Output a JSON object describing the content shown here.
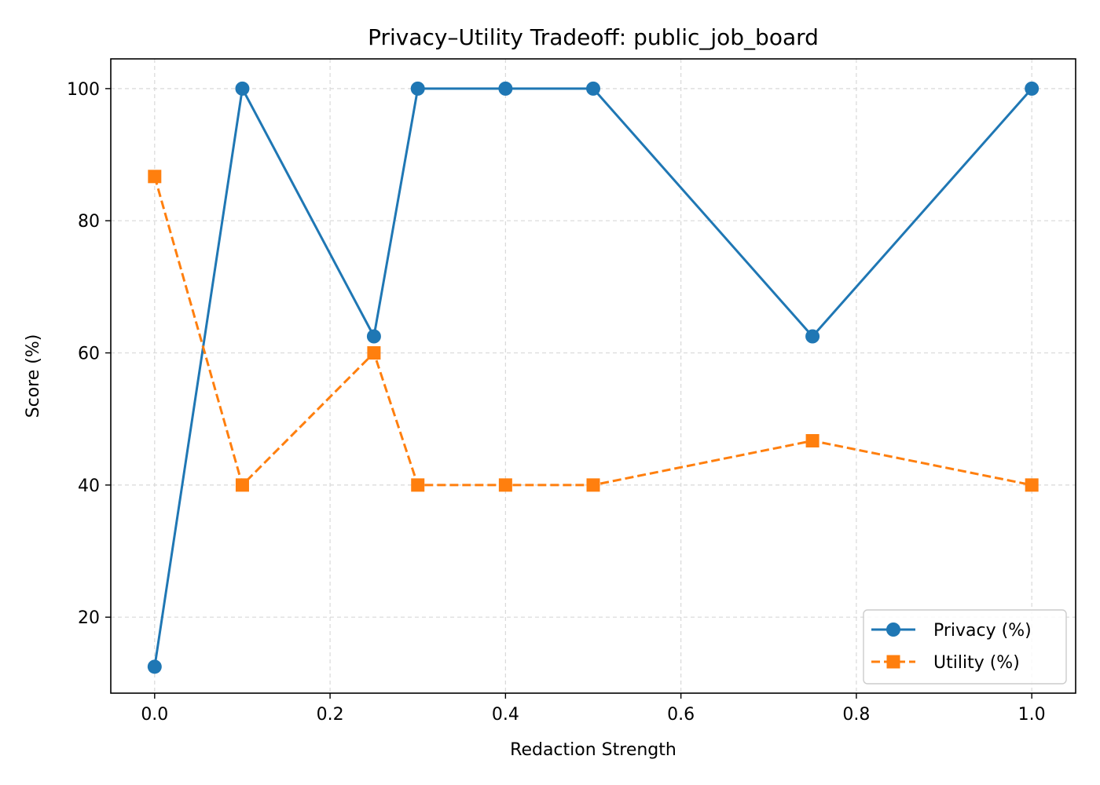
{
  "chart_data": {
    "type": "line",
    "title": "Privacy–Utility Tradeoff: public_job_board",
    "xlabel": "Redaction Strength",
    "ylabel": "Score (%)",
    "xlim": [
      -0.05,
      1.05
    ],
    "ylim": [
      8.5,
      104.5
    ],
    "xticks": [
      0.0,
      0.2,
      0.4,
      0.6,
      0.8,
      1.0
    ],
    "xtick_labels": [
      "0.0",
      "0.2",
      "0.4",
      "0.6",
      "0.8",
      "1.0"
    ],
    "yticks": [
      20,
      40,
      60,
      80,
      100
    ],
    "ytick_labels": [
      "20",
      "40",
      "60",
      "80",
      "100"
    ],
    "grid": true,
    "legend_position": "bottom-right",
    "x": [
      0.0,
      0.1,
      0.25,
      0.3,
      0.4,
      0.5,
      0.75,
      1.0
    ],
    "series": [
      {
        "name": "Privacy (%)",
        "values": [
          12.5,
          100,
          62.5,
          100,
          100,
          100,
          62.5,
          100
        ],
        "color": "#1f77b4",
        "marker": "circle",
        "line_style": "solid"
      },
      {
        "name": "Utility (%)",
        "values": [
          86.7,
          40,
          60,
          40,
          40,
          40,
          46.7,
          40
        ],
        "color": "#ff7f0e",
        "marker": "square",
        "line_style": "dashed"
      }
    ]
  }
}
